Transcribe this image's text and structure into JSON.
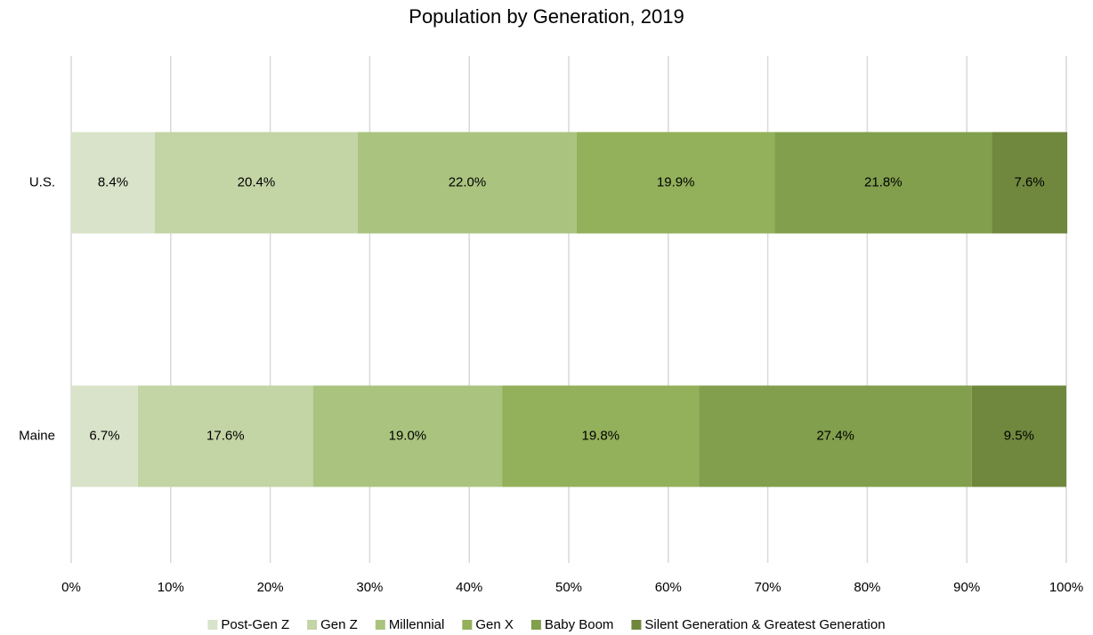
{
  "chart_data": {
    "type": "bar",
    "orientation": "horizontal",
    "stacked": true,
    "title": "Population by Generation, 2019",
    "categories": [
      "U.S.",
      "Maine"
    ],
    "series": [
      {
        "name": "Post-Gen Z",
        "color": "#d9e3c9",
        "values": [
          8.4,
          6.7
        ],
        "value_labels": [
          "8.4%",
          "6.7%"
        ]
      },
      {
        "name": "Gen Z",
        "color": "#c3d4a5",
        "values": [
          20.4,
          17.6
        ],
        "value_labels": [
          "20.4%",
          "17.6%"
        ]
      },
      {
        "name": "Millennial",
        "color": "#aac47f",
        "values": [
          22.0,
          19.0
        ],
        "value_labels": [
          "22.0%",
          "19.0%"
        ]
      },
      {
        "name": "Gen X",
        "color": "#93b05a",
        "values": [
          19.9,
          19.8
        ],
        "value_labels": [
          "19.9%",
          "19.8%"
        ]
      },
      {
        "name": "Baby Boom",
        "color": "#819f4c",
        "values": [
          21.8,
          27.4
        ],
        "value_labels": [
          "21.8%",
          "27.4%"
        ]
      },
      {
        "name": "Silent Generation & Greatest Generation",
        "color": "#6f883d",
        "values": [
          7.6,
          9.5
        ],
        "value_labels": [
          "7.6%",
          "9.5%"
        ]
      }
    ],
    "xlim": [
      0,
      100
    ],
    "xticks": [
      {
        "value": 0,
        "label": "0%"
      },
      {
        "value": 10,
        "label": "10%"
      },
      {
        "value": 20,
        "label": "20%"
      },
      {
        "value": 30,
        "label": "30%"
      },
      {
        "value": 40,
        "label": "40%"
      },
      {
        "value": 50,
        "label": "50%"
      },
      {
        "value": 60,
        "label": "60%"
      },
      {
        "value": 70,
        "label": "70%"
      },
      {
        "value": 80,
        "label": "80%"
      },
      {
        "value": 90,
        "label": "90%"
      },
      {
        "value": 100,
        "label": "100%"
      }
    ],
    "grid": true,
    "legend": "bottom"
  }
}
